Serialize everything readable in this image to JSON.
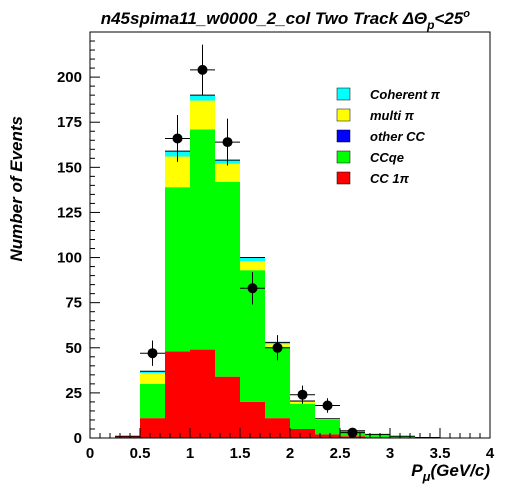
{
  "chart_data": {
    "type": "bar",
    "stacked": true,
    "title": {
      "main": "n45spima11_w0000_2_col Two Track ",
      "symbol": "ΔΘ",
      "sub": "p",
      "tail": "<25",
      "sup": "o"
    },
    "xlabel": {
      "main": "P",
      "sub": "μ",
      "tail": "(GeV/c)"
    },
    "ylabel": "Number of Events",
    "xlim": [
      0,
      4
    ],
    "ylim": [
      0,
      225
    ],
    "xticks": [
      "0",
      "0.5",
      "1",
      "1.5",
      "2",
      "2.5",
      "3",
      "3.5",
      "4"
    ],
    "yticks": [
      "0",
      "25",
      "50",
      "75",
      "100",
      "125",
      "150",
      "175",
      "200"
    ],
    "bin_edges": [
      0.25,
      0.5,
      0.75,
      1.0,
      1.25,
      1.5,
      1.75,
      2.0,
      2.25,
      2.5,
      2.75,
      3.0,
      3.25,
      3.5
    ],
    "series": [
      {
        "name": "CC 1π",
        "color": "#ff0000",
        "values": [
          1,
          11,
          48,
          49,
          34,
          20,
          11,
          5,
          2,
          1,
          0.5,
          0.3,
          0.1
        ]
      },
      {
        "name": "CCqe",
        "color": "#00ff00",
        "values": [
          0,
          19,
          91,
          122,
          108,
          73,
          39,
          14,
          8,
          3,
          1.5,
          0.7,
          0.2
        ]
      },
      {
        "name": "other CC",
        "color": "#0000ff",
        "values": [
          0,
          0,
          0,
          0,
          0,
          0,
          0,
          0,
          0,
          0,
          0,
          0,
          0
        ]
      },
      {
        "name": "multi π",
        "color": "#ffff00",
        "values": [
          0,
          6,
          17,
          16,
          10,
          5,
          2,
          1,
          0.5,
          0,
          0,
          0,
          0
        ]
      },
      {
        "name": "Coherent π",
        "color": "#00ffff",
        "values": [
          0,
          1,
          3,
          3,
          2,
          2,
          1,
          0.5,
          0.2,
          0,
          0,
          0,
          0
        ]
      }
    ],
    "data_points": {
      "x": [
        0.625,
        0.875,
        1.125,
        1.375,
        1.625,
        1.875,
        2.125,
        2.375,
        2.625
      ],
      "y": [
        47,
        166,
        204,
        164,
        83,
        50,
        24,
        18,
        3
      ],
      "xerr": 0.125,
      "yerr": [
        7,
        13,
        14,
        13,
        9,
        7,
        5,
        4,
        2
      ]
    },
    "legend": {
      "placement": "top-right",
      "entries": [
        {
          "label": "Coherent π",
          "color": "#00ffff"
        },
        {
          "label": "multi π",
          "color": "#ffff00"
        },
        {
          "label": "other CC",
          "color": "#0000ff"
        },
        {
          "label": "CCqe",
          "color": "#00ff00"
        },
        {
          "label": "CC 1π",
          "color": "#ff0000"
        }
      ]
    }
  }
}
